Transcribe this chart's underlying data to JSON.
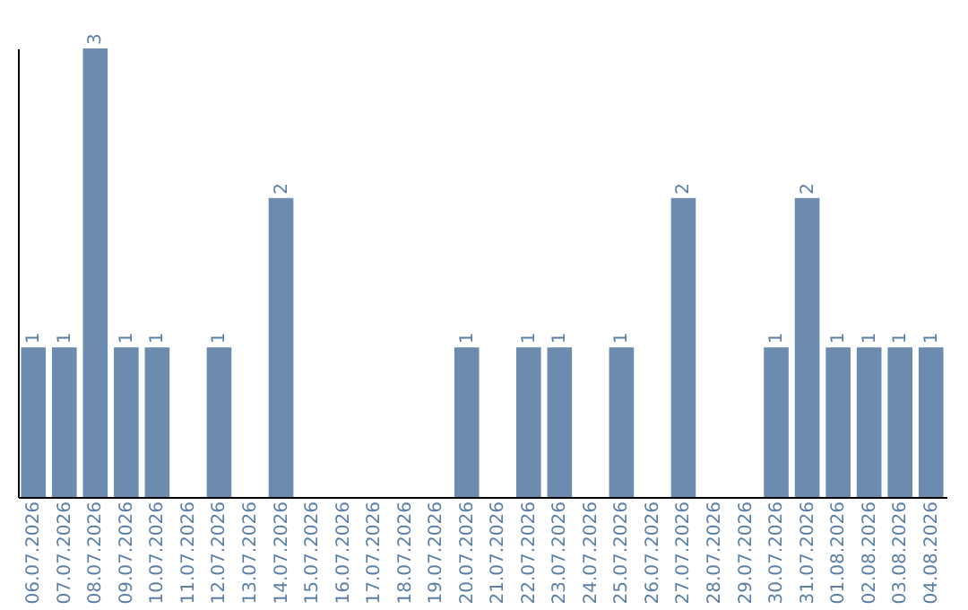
{
  "chart_data": {
    "type": "bar",
    "categories": [
      "06.07.2026",
      "07.07.2026",
      "08.07.2026",
      "09.07.2026",
      "10.07.2026",
      "11.07.2026",
      "12.07.2026",
      "13.07.2026",
      "14.07.2026",
      "15.07.2026",
      "16.07.2026",
      "17.07.2026",
      "18.07.2026",
      "19.07.2026",
      "20.07.2026",
      "21.07.2026",
      "22.07.2026",
      "23.07.2026",
      "24.07.2026",
      "25.07.2026",
      "26.07.2026",
      "27.07.2026",
      "28.07.2026",
      "29.07.2026",
      "30.07.2026",
      "31.07.2026",
      "01.08.2026",
      "02.08.2026",
      "03.08.2026",
      "04.08.2026"
    ],
    "values": [
      1,
      1,
      3,
      1,
      1,
      0,
      1,
      0,
      2,
      0,
      0,
      0,
      0,
      0,
      1,
      0,
      1,
      1,
      0,
      1,
      0,
      2,
      0,
      0,
      1,
      2,
      1,
      1,
      1,
      1
    ],
    "value_labels": [
      "1",
      "1",
      "3",
      "1",
      "1",
      null,
      "1",
      null,
      "2",
      null,
      null,
      null,
      null,
      null,
      "1",
      null,
      "1",
      "1",
      null,
      "1",
      null,
      "2",
      null,
      null,
      "1",
      "2",
      "1",
      "1",
      "1",
      "1"
    ],
    "color": "#6b8cae"
  }
}
